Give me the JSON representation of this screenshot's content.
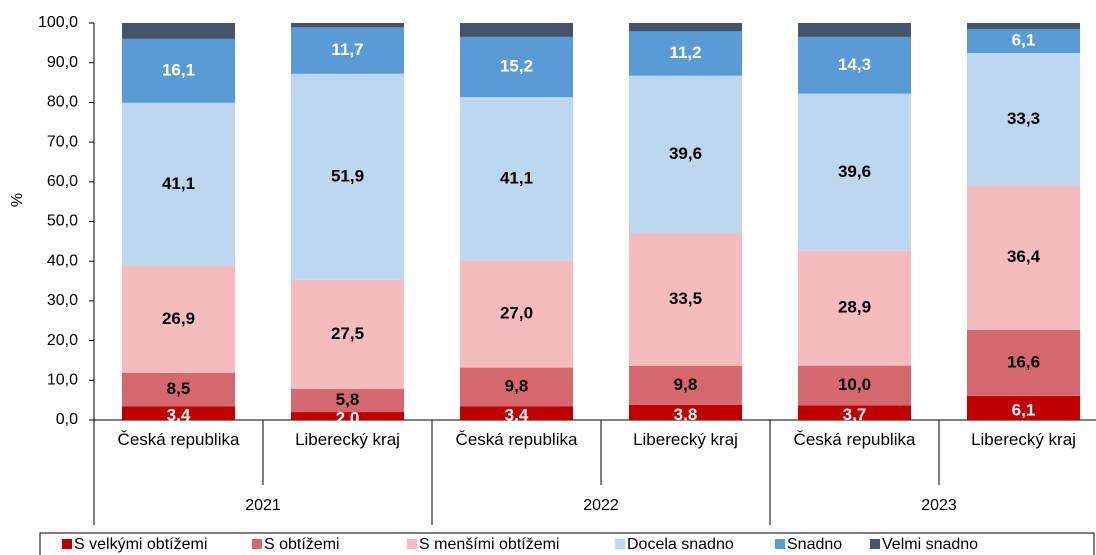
{
  "chart_data": {
    "type": "stacked_bar",
    "y_label": "%",
    "categories": [
      "Česká republika",
      "Liberecký kraj",
      "Česká republika",
      "Liberecký kraj",
      "Česká republika",
      "Liberecký kraj"
    ],
    "groups": [
      "2021",
      "2022",
      "2023"
    ],
    "ylim": [
      0,
      100
    ],
    "yticks": [
      {
        "value": 0,
        "label": "0,0"
      },
      {
        "value": 10,
        "label": "10,0"
      },
      {
        "value": 20,
        "label": "20,0"
      },
      {
        "value": 30,
        "label": "30,0"
      },
      {
        "value": 40,
        "label": "40,0"
      },
      {
        "value": 50,
        "label": "50,0"
      },
      {
        "value": 60,
        "label": "60,0"
      },
      {
        "value": 70,
        "label": "70,0"
      },
      {
        "value": 80,
        "label": "80,0"
      },
      {
        "value": 90,
        "label": "90,0"
      },
      {
        "value": 100,
        "label": "100,0"
      }
    ],
    "legend": "bottom",
    "series": [
      {
        "name": "S velkými obtížemi",
        "color": "#c00000",
        "values": [
          3.4,
          2.0,
          3.4,
          3.8,
          3.7,
          6.1
        ],
        "value_labels": [
          "3,4",
          "2,0",
          "3,4",
          "3,8",
          "3,7",
          "6,1"
        ]
      },
      {
        "name": "S obtížemi",
        "color": "#d5676f",
        "values": [
          8.5,
          5.8,
          9.8,
          9.8,
          10.0,
          16.6
        ],
        "value_labels": [
          "8,5",
          "5,8",
          "9,8",
          "9,8",
          "10,0",
          "16,6"
        ]
      },
      {
        "name": "S menšími obtížemi",
        "color": "#f5bcc0",
        "values": [
          26.9,
          27.5,
          27.0,
          33.5,
          28.9,
          36.4
        ],
        "value_labels": [
          "26,9",
          "27,5",
          "27,0",
          "33,5",
          "28,9",
          "36,4"
        ]
      },
      {
        "name": "Docela snadno",
        "color": "#bdd7ee",
        "values": [
          41.1,
          51.9,
          41.1,
          39.6,
          39.6,
          33.3
        ],
        "value_labels": [
          "41,1",
          "51,9",
          "41,1",
          "39,6",
          "39,6",
          "33,3"
        ]
      },
      {
        "name": "Snadno",
        "color": "#5b9bd5",
        "values": [
          16.1,
          11.7,
          15.2,
          11.2,
          14.3,
          6.1
        ],
        "value_labels": [
          "16,1",
          "11,7",
          "15,2",
          "11,2",
          "14,3",
          "6,1"
        ]
      },
      {
        "name": "Velmi snadno",
        "color": "#44546a",
        "values": [
          4.0,
          1.1,
          3.5,
          2.1,
          3.5,
          1.5
        ]
      }
    ]
  }
}
